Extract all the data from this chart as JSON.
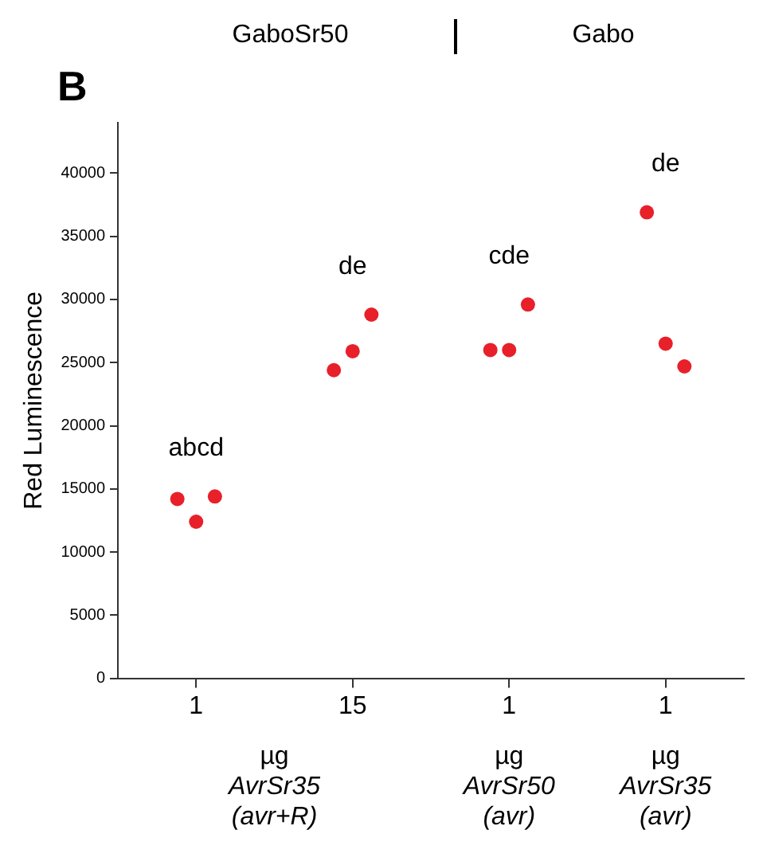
{
  "chart_data": {
    "type": "scatter",
    "ylabel": "Red Luminescence",
    "categories": [
      "1",
      "15",
      "1",
      "1"
    ],
    "series": [
      {
        "color": "#e8202a",
        "values": [
          14200,
          24400,
          26000,
          36900
        ]
      },
      {
        "color": "#e8202a",
        "values": [
          12400,
          25900,
          26000,
          26500
        ]
      },
      {
        "color": "#e8202a",
        "values": [
          14400,
          28800,
          29600,
          24700
        ]
      }
    ],
    "ylim": [
      0,
      44000
    ],
    "yticks": [
      0,
      5000,
      10000,
      15000,
      20000,
      25000,
      30000,
      35000,
      40000
    ],
    "grid": false,
    "legend": false,
    "marker": "circle",
    "annotations": [
      "B",
      "GaboSr50",
      "Gabo",
      "abcd",
      "de",
      "cde",
      "de",
      "µg\nAvrSr35\n(avr+R)",
      "µg\nAvrSr50\n(avr)",
      "µg\nAvrSr35\n(avr)"
    ]
  }
}
